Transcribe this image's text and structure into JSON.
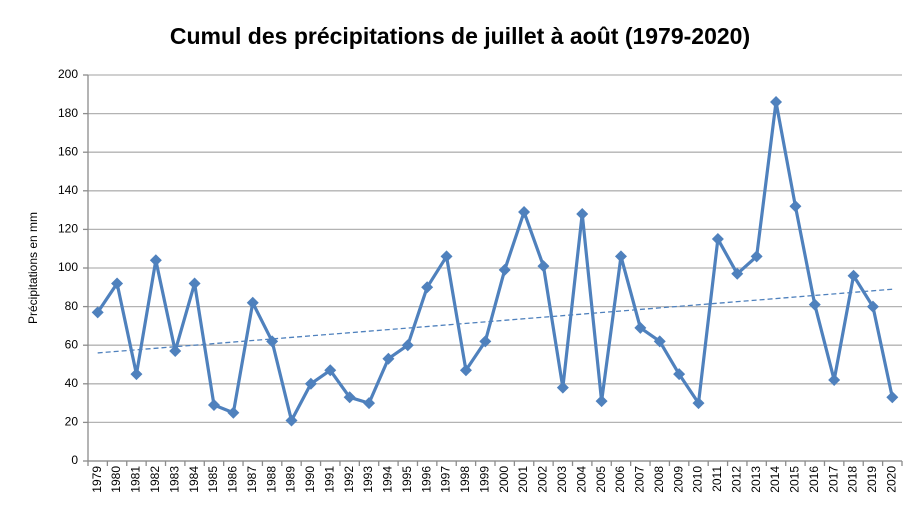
{
  "chart_data": {
    "type": "line",
    "title": "Cumul des précipitations de juillet à août (1979-2020)",
    "y_label": "Précipitations en mm",
    "categories": [
      "1979",
      "1980",
      "1981",
      "1982",
      "1983",
      "1984",
      "1985",
      "1986",
      "1987",
      "1988",
      "1989",
      "1990",
      "1991",
      "1992",
      "1993",
      "1994",
      "1995",
      "1996",
      "1997",
      "1998",
      "1999",
      "2000",
      "2001",
      "2002",
      "2003",
      "2004",
      "2005",
      "2006",
      "2007",
      "2008",
      "2009",
      "2010",
      "2011",
      "2012",
      "2013",
      "2014",
      "2015",
      "2016",
      "2017",
      "2018",
      "2019",
      "2020"
    ],
    "series": [
      {
        "name": "Précipitations",
        "color": "#4f81bd",
        "values": [
          77,
          92,
          45,
          104,
          57,
          92,
          29,
          25,
          82,
          62,
          21,
          40,
          47,
          33,
          30,
          53,
          60,
          90,
          106,
          47,
          62,
          99,
          129,
          101,
          38,
          128,
          31,
          106,
          69,
          62,
          45,
          30,
          115,
          97,
          106,
          186,
          132,
          81,
          42,
          96,
          80,
          33
        ]
      }
    ],
    "trendline": {
      "color": "#4f81bd",
      "values": [
        56,
        89
      ]
    },
    "ylim": [
      0,
      200
    ],
    "yticks": [
      0,
      20,
      40,
      60,
      80,
      100,
      120,
      140,
      160,
      180,
      200
    ],
    "grid": true
  }
}
